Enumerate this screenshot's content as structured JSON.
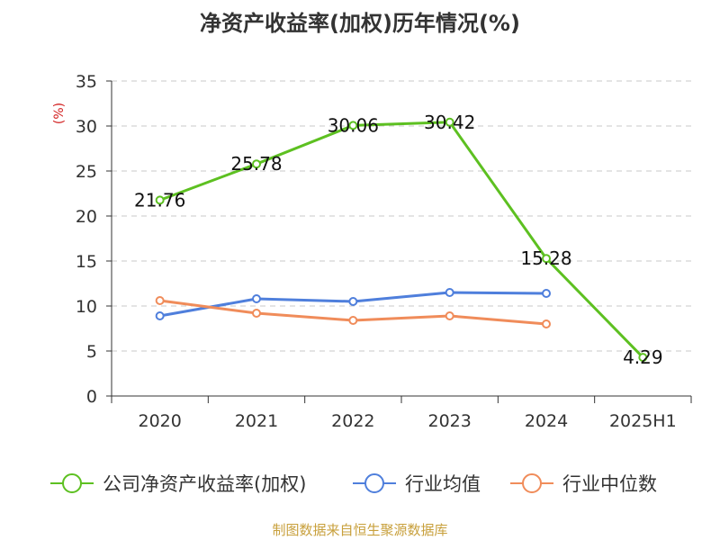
{
  "title": "净资产收益率(加权)历年情况(%)",
  "source": "制图数据来自恒生聚源数据库",
  "chart_data": {
    "type": "line",
    "title": "净资产收益率(加权)历年情况(%)",
    "ylabel": "(%)",
    "xlabel": "",
    "categories": [
      "2020",
      "2021",
      "2022",
      "2023",
      "2024",
      "2025H1"
    ],
    "ylim": [
      0,
      35
    ],
    "yticks": [
      0,
      5,
      10,
      15,
      20,
      25,
      30,
      35
    ],
    "grid": true,
    "legend_position": "bottom",
    "series": [
      {
        "name": "公司净资产收益率(加权)",
        "color": "#5dc021",
        "values": [
          21.76,
          25.78,
          30.06,
          30.42,
          15.28,
          4.29
        ],
        "labels": true
      },
      {
        "name": "行业均值",
        "color": "#4f7fdc",
        "values": [
          8.9,
          10.8,
          10.5,
          11.5,
          11.4,
          null
        ],
        "labels": false
      },
      {
        "name": "行业中位数",
        "color": "#f08c5a",
        "values": [
          10.6,
          9.2,
          8.4,
          8.9,
          8.0,
          null
        ],
        "labels": false
      }
    ]
  }
}
